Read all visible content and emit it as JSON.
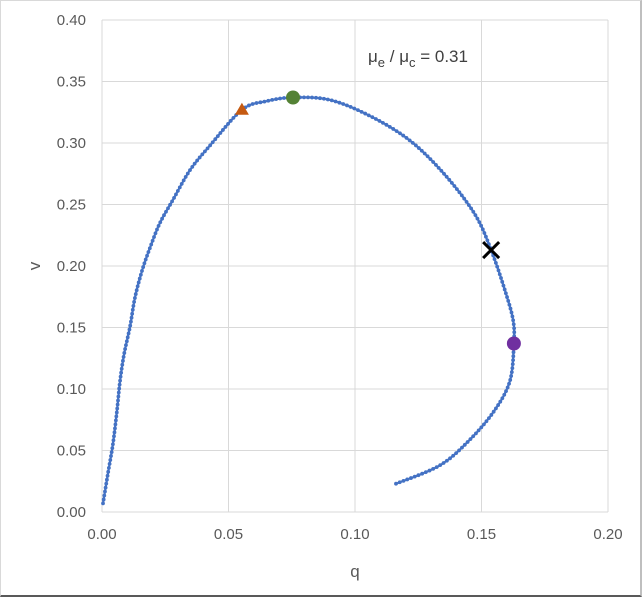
{
  "chart_data": {
    "type": "scatter",
    "title": "",
    "annotation": {
      "prefix_symbol": "μ",
      "sub1": "e",
      "mid": " / ",
      "sub2": "c",
      "suffix": " = 0.31",
      "text": "μe / μc = 0.31"
    },
    "xlabel": "q",
    "ylabel": "v",
    "xlim": [
      0,
      0.2
    ],
    "ylim": [
      0,
      0.4
    ],
    "xticks": [
      "0.00",
      "0.05",
      "0.10",
      "0.15",
      "0.20"
    ],
    "yticks": [
      "0.00",
      "0.05",
      "0.10",
      "0.15",
      "0.20",
      "0.25",
      "0.30",
      "0.35",
      "0.40"
    ],
    "grid": true,
    "legend": "none",
    "series": [
      {
        "name": "trajectory",
        "color": "#4472c4",
        "marker": "small-dot",
        "points": [
          [
            0.0004,
            0.007
          ],
          [
            0.0024,
            0.032
          ],
          [
            0.0043,
            0.055
          ],
          [
            0.0059,
            0.082
          ],
          [
            0.0071,
            0.106
          ],
          [
            0.0087,
            0.128
          ],
          [
            0.0111,
            0.151
          ],
          [
            0.013,
            0.174
          ],
          [
            0.0158,
            0.196
          ],
          [
            0.019,
            0.215
          ],
          [
            0.0229,
            0.235
          ],
          [
            0.0281,
            0.254
          ],
          [
            0.0348,
            0.278
          ],
          [
            0.0427,
            0.298
          ],
          [
            0.0553,
            0.327
          ],
          [
            0.065,
            0.334
          ],
          [
            0.0755,
            0.337
          ],
          [
            0.0901,
            0.335
          ],
          [
            0.1059,
            0.322
          ],
          [
            0.1217,
            0.302
          ],
          [
            0.1356,
            0.274
          ],
          [
            0.1474,
            0.242
          ],
          [
            0.1538,
            0.213
          ],
          [
            0.1593,
            0.18
          ],
          [
            0.1625,
            0.156
          ],
          [
            0.1628,
            0.137
          ],
          [
            0.1613,
            0.107
          ],
          [
            0.1553,
            0.083
          ],
          [
            0.1455,
            0.059
          ],
          [
            0.1336,
            0.038
          ],
          [
            0.1162,
            0.023
          ]
        ]
      }
    ],
    "markers": [
      {
        "name": "orange-triangle",
        "shape": "triangle",
        "color": "#c55a11",
        "q": 0.0553,
        "v": 0.327
      },
      {
        "name": "green-circle",
        "shape": "circle",
        "color": "#548235",
        "q": 0.0755,
        "v": 0.337
      },
      {
        "name": "black-x",
        "shape": "x",
        "color": "#000000",
        "q": 0.1538,
        "v": 0.213
      },
      {
        "name": "purple-circle",
        "shape": "circle",
        "color": "#7030a0",
        "q": 0.1628,
        "v": 0.137
      }
    ]
  }
}
